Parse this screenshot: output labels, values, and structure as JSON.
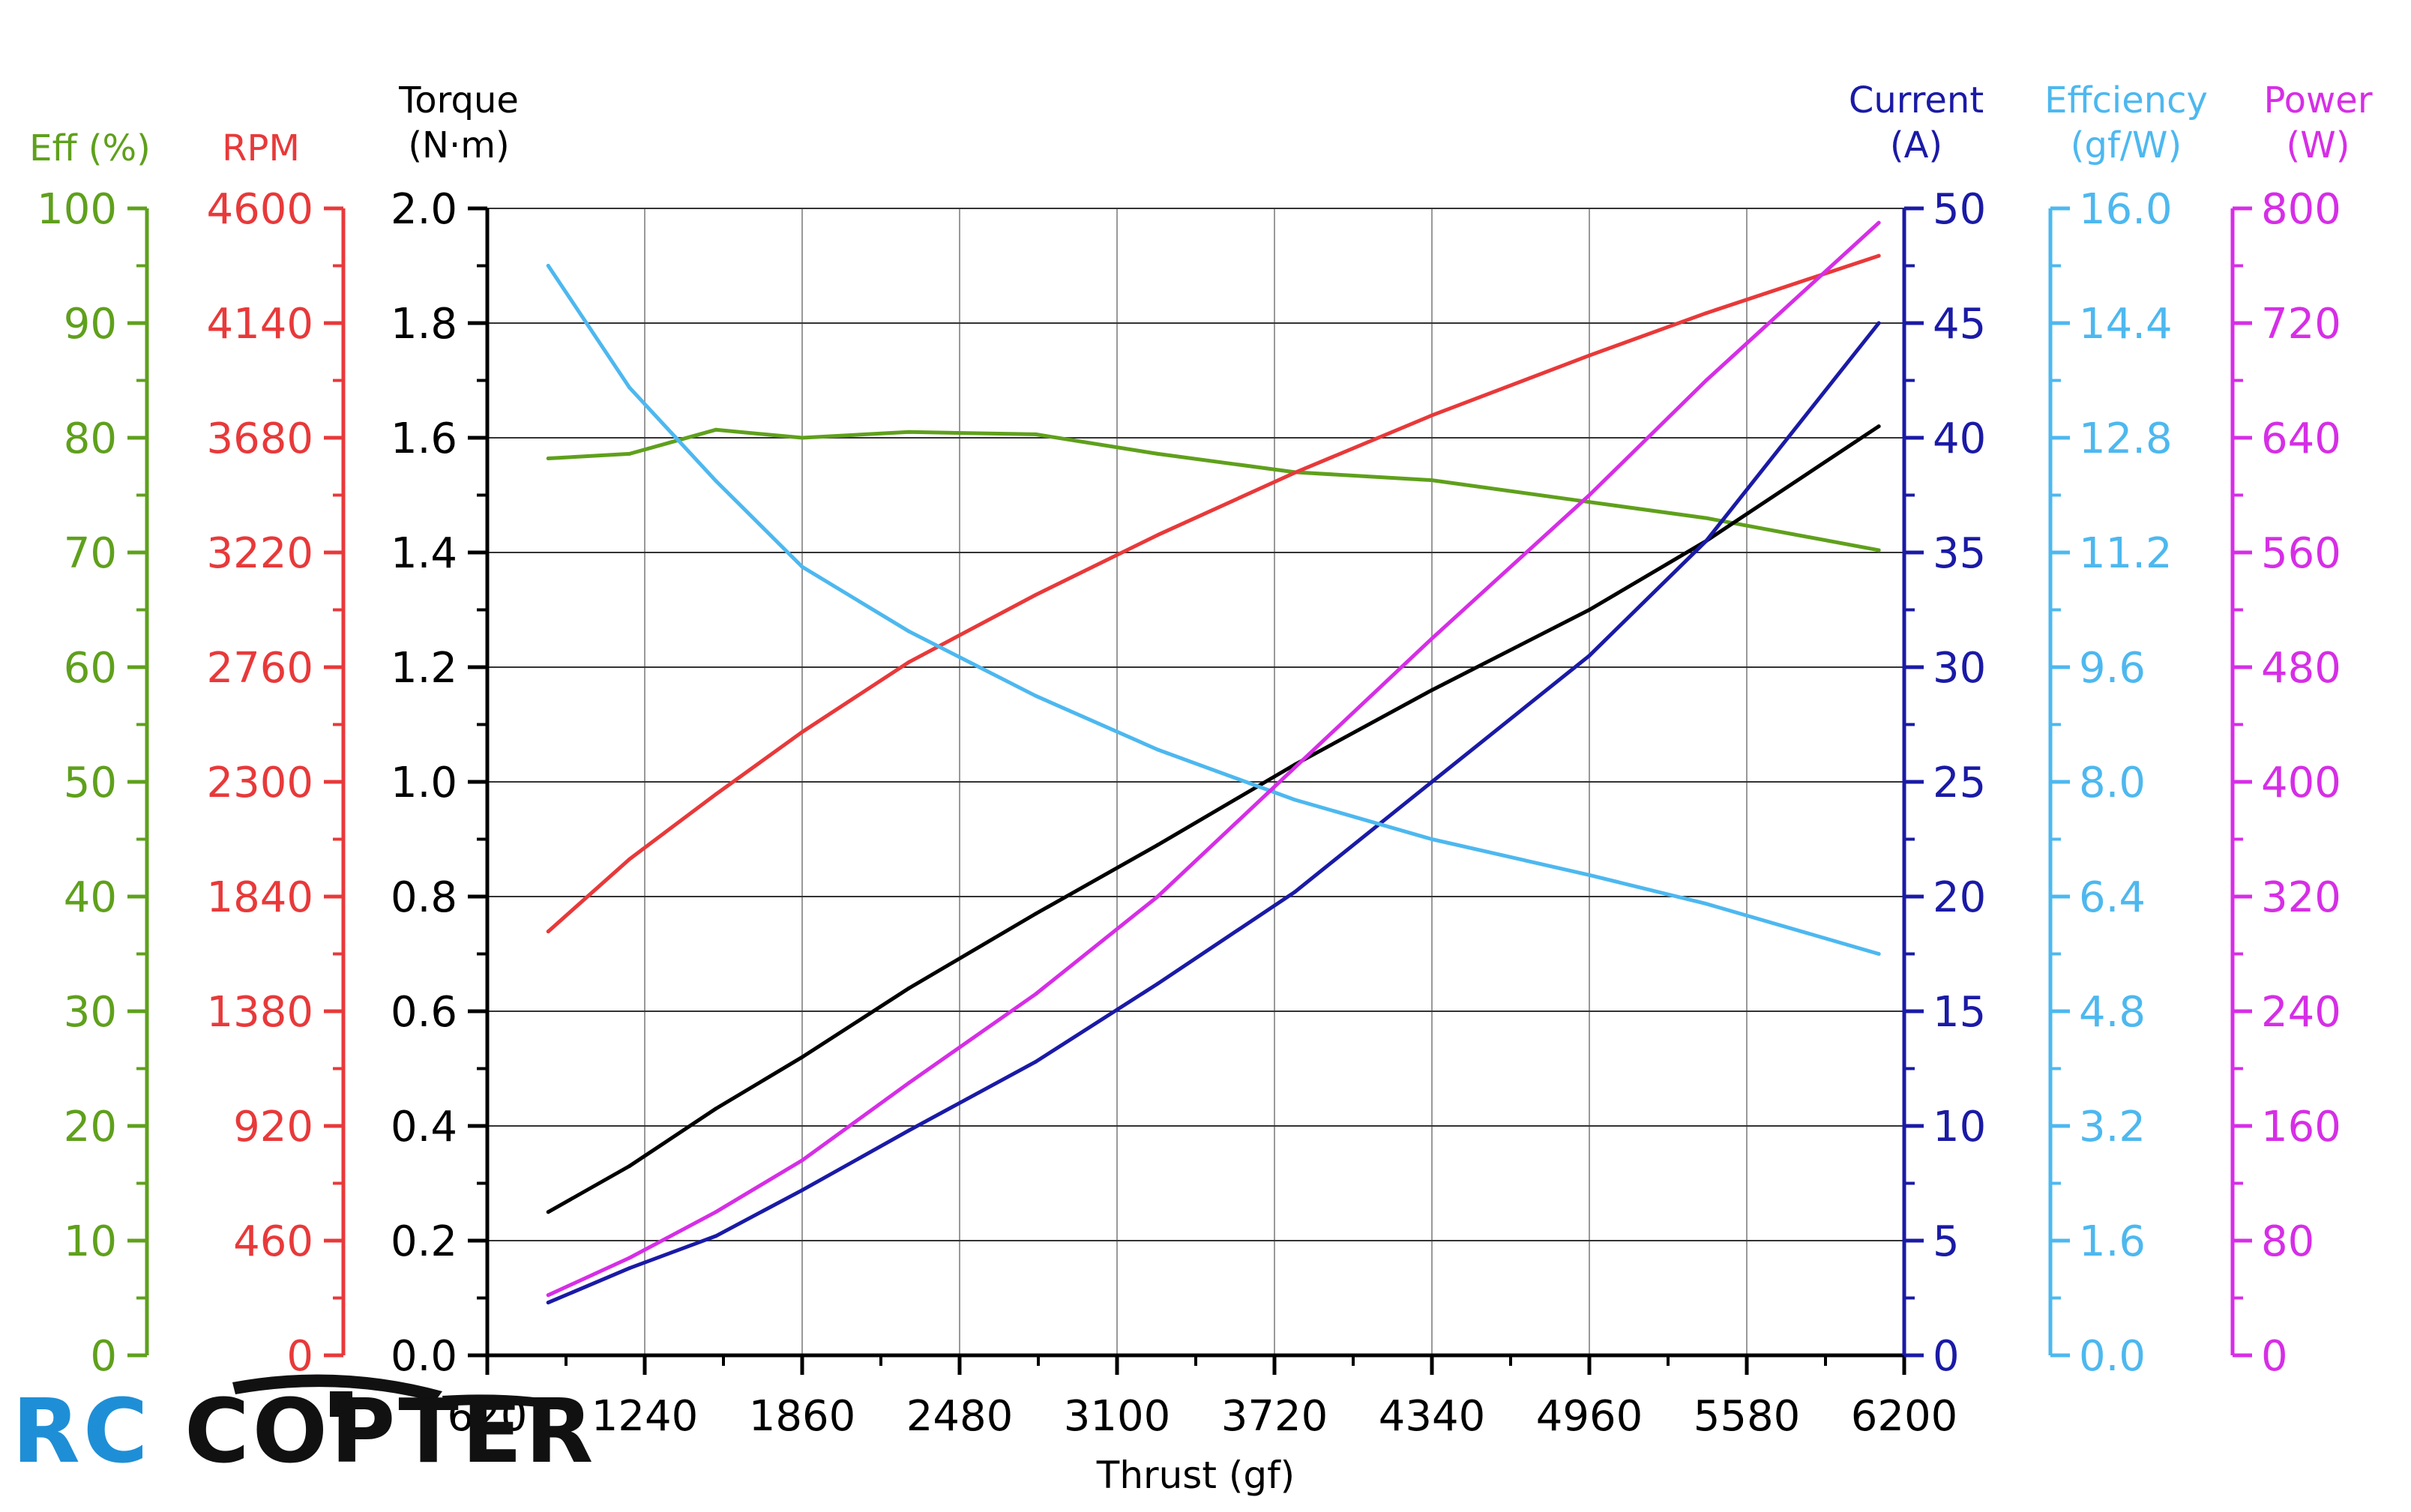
{
  "chart_data": {
    "type": "line",
    "xlabel": "Thrust (gf)",
    "x_ticks": [
      620,
      1240,
      1860,
      2480,
      3100,
      3720,
      4340,
      4960,
      5580,
      6200
    ],
    "xlim": [
      620,
      6200
    ],
    "grid": true,
    "axes": {
      "eff": {
        "title": [
          "Eff (%)"
        ],
        "ticks": [
          0,
          10,
          20,
          30,
          40,
          50,
          60,
          70,
          80,
          90,
          100
        ],
        "ylim": [
          0,
          100
        ],
        "color": "#5fa01c",
        "decimals": 0
      },
      "rpm": {
        "title": [
          "RPM"
        ],
        "ticks": [
          0,
          460,
          920,
          1380,
          1840,
          2300,
          2760,
          3220,
          3680,
          4140,
          4600
        ],
        "ylim": [
          0,
          4600
        ],
        "color": "#e8393a",
        "decimals": 0
      },
      "torque": {
        "title": [
          "Torque",
          "(N·m)"
        ],
        "ticks": [
          0,
          0.2,
          0.4,
          0.6,
          0.8,
          1.0,
          1.2,
          1.4,
          1.6,
          1.8,
          2.0
        ],
        "ylim": [
          0,
          2.0
        ],
        "color": "#000000",
        "decimals": 1
      },
      "current": {
        "title": [
          "Current",
          "(A)"
        ],
        "ticks": [
          0,
          5,
          10,
          15,
          20,
          25,
          30,
          35,
          40,
          45,
          50
        ],
        "ylim": [
          0,
          50
        ],
        "color": "#1a1aa6",
        "decimals": 0
      },
      "effcy": {
        "title": [
          "Effciency",
          "(gf/W)"
        ],
        "ticks": [
          0,
          1.6,
          3.2,
          4.8,
          6.4,
          8.0,
          9.6,
          11.2,
          12.8,
          14.4,
          16.0
        ],
        "ylim": [
          0,
          16
        ],
        "color": "#4db8ef",
        "decimals": 1
      },
      "power": {
        "title": [
          "Power",
          "(W)"
        ],
        "ticks": [
          0,
          80,
          160,
          240,
          320,
          400,
          480,
          560,
          640,
          720,
          800
        ],
        "ylim": [
          0,
          800
        ],
        "color": "#d62ee6",
        "decimals": 0
      }
    },
    "series": [
      {
        "axis": "eff",
        "color": "#5fa01c",
        "x": [
          860,
          1180,
          1520,
          1860,
          2280,
          2780,
          3260,
          3800,
          4340,
          4960,
          5420,
          6100
        ],
        "y": [
          78.2,
          78.6,
          80.7,
          80.0,
          80.5,
          80.3,
          78.6,
          77.0,
          76.3,
          74.4,
          73.0,
          70.2
        ]
      },
      {
        "axis": "rpm",
        "color": "#e8393a",
        "x": [
          860,
          1180,
          1520,
          1860,
          2280,
          2780,
          3260,
          3800,
          4340,
          4960,
          5420,
          6100
        ],
        "y": [
          1700,
          1990,
          2250,
          2500,
          2780,
          3050,
          3290,
          3540,
          3770,
          4010,
          4180,
          4410
        ]
      },
      {
        "axis": "torque",
        "color": "#000000",
        "x": [
          860,
          1180,
          1520,
          1860,
          2280,
          2780,
          3260,
          3800,
          4340,
          4960,
          5420,
          6100
        ],
        "y": [
          0.25,
          0.33,
          0.43,
          0.52,
          0.64,
          0.77,
          0.89,
          1.03,
          1.16,
          1.3,
          1.42,
          1.62
        ]
      },
      {
        "axis": "current",
        "color": "#1a1aa6",
        "x": [
          860,
          1180,
          1520,
          1860,
          2280,
          2780,
          3260,
          3800,
          4340,
          4960,
          5420,
          6100
        ],
        "y": [
          2.3,
          3.8,
          5.2,
          7.2,
          9.8,
          12.8,
          16.2,
          20.2,
          25.0,
          30.5,
          35.5,
          45.0
        ]
      },
      {
        "axis": "effcy",
        "color": "#4db8ef",
        "x": [
          860,
          1180,
          1520,
          1860,
          2280,
          2780,
          3260,
          3800,
          4340,
          4960,
          5420,
          6100
        ],
        "y": [
          15.2,
          13.5,
          12.2,
          11.0,
          10.1,
          9.2,
          8.45,
          7.75,
          7.2,
          6.7,
          6.3,
          5.6
        ]
      },
      {
        "axis": "power",
        "color": "#d62ee6",
        "x": [
          860,
          1180,
          1520,
          1860,
          2280,
          2780,
          3260,
          3800,
          4340,
          4960,
          5420,
          6100
        ],
        "y": [
          42,
          68,
          100,
          136,
          190,
          252,
          320,
          410,
          500,
          600,
          680,
          790
        ]
      }
    ]
  },
  "logo": {
    "rc": "RC",
    "copter": "COPTER"
  }
}
